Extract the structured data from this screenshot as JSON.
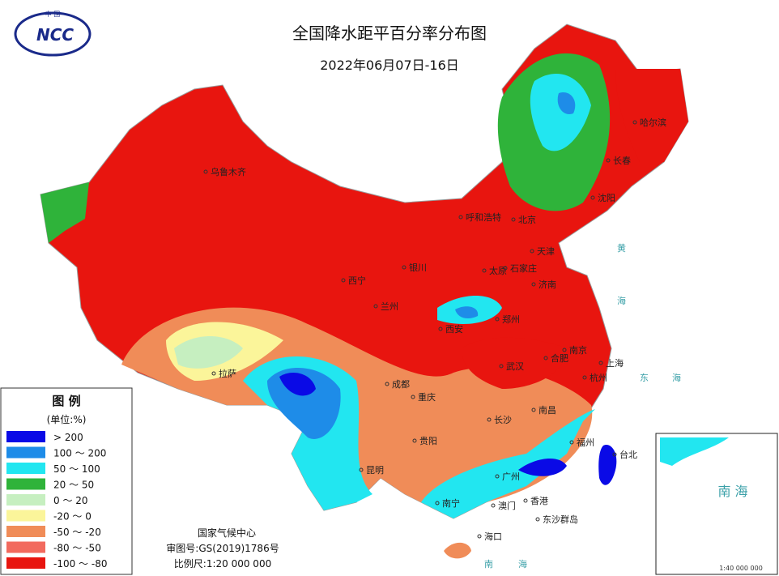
{
  "header": {
    "logo_top": "中 国",
    "logo": "NCC",
    "title": "全国降水距平百分率分布图",
    "date": "2022年06月07日-16日"
  },
  "legend": {
    "title": "图 例",
    "unit": "(单位:%)",
    "items": [
      {
        "label": "> 200",
        "color": "#0a0ae6"
      },
      {
        "label": "100 ～ 200",
        "color": "#1e8ce8"
      },
      {
        "label": "50 ～ 100",
        "color": "#22e6f0"
      },
      {
        "label": "20 ～ 50",
        "color": "#2fb33a"
      },
      {
        "label": "0 ～ 20",
        "color": "#c6efc0"
      },
      {
        "label": "-20 ～ 0",
        "color": "#fbf59a"
      },
      {
        "label": "-50 ～ -20",
        "color": "#f08c58"
      },
      {
        "label": "-80 ～ -50",
        "color": "#f26a5e"
      },
      {
        "label": "-100 ～ -80",
        "color": "#e8150f"
      }
    ]
  },
  "footer": {
    "agency": "国家气候中心",
    "approval": "审图号:GS(2019)1786号",
    "scale": "比例尺:1:20 000 000"
  },
  "cities": [
    "乌鲁木齐",
    "哈尔滨",
    "长春",
    "沈阳",
    "呼和浩特",
    "北京",
    "天津",
    "银川",
    "太原",
    "石家庄",
    "济南",
    "西宁",
    "兰州",
    "西安",
    "郑州",
    "南京",
    "合肥",
    "上海",
    "杭州",
    "武汉",
    "拉萨",
    "成都",
    "重庆",
    "长沙",
    "南昌",
    "福州",
    "台北",
    "贵阳",
    "昆明",
    "广州",
    "香港",
    "澳门",
    "南宁",
    "海口",
    "东沙群岛"
  ],
  "seas": [
    "黄",
    "海",
    "东",
    "海",
    "南",
    "海"
  ],
  "inset": {
    "label": "南 海",
    "scale": "1:40 000 000"
  }
}
